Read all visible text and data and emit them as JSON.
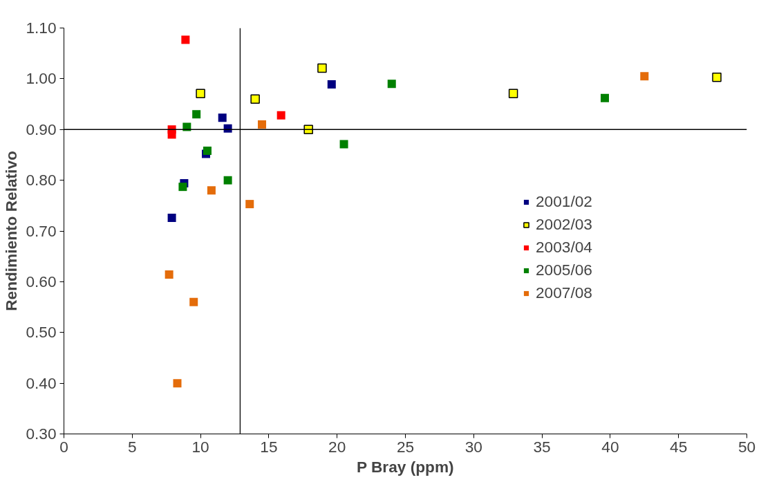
{
  "chart_data": {
    "type": "scatter",
    "xlabel": "P Bray (ppm)",
    "ylabel": "Rendimiento Relativo",
    "xlim": [
      0,
      50
    ],
    "xticks": [
      0,
      5,
      10,
      15,
      20,
      25,
      30,
      35,
      40,
      45,
      50
    ],
    "ylim": [
      0.3,
      1.1
    ],
    "yticks": [
      {
        "value": 0.3,
        "label": "0.30"
      },
      {
        "value": 0.4,
        "label": "0.40"
      },
      {
        "value": 0.5,
        "label": "0.50"
      },
      {
        "value": 0.6,
        "label": "0.60"
      },
      {
        "value": 0.7,
        "label": "0.70"
      },
      {
        "value": 0.8,
        "label": "0.80"
      },
      {
        "value": 0.9,
        "label": "0.90"
      },
      {
        "value": 1.0,
        "label": "1.00"
      },
      {
        "value": 1.1,
        "label": "1.10"
      }
    ],
    "grid": false,
    "legend": "right",
    "marker": "square",
    "series": [
      {
        "name": "2001/02",
        "color": "#000080",
        "x": [
          7.9,
          8.8,
          10.4,
          11.6,
          12.0,
          19.6
        ],
        "values": [
          0.726,
          0.794,
          0.852,
          0.923,
          0.902,
          0.989
        ]
      },
      {
        "name": "2002/03",
        "color": "#ffff00",
        "x": [
          10.0,
          14.0,
          18.9,
          17.9,
          32.9,
          47.8
        ],
        "values": [
          0.971,
          0.96,
          1.021,
          0.9,
          0.971,
          1.003
        ]
      },
      {
        "name": "2003/04",
        "color": "#ff0000",
        "x": [
          8.9,
          7.9,
          7.9,
          15.9
        ],
        "values": [
          1.077,
          0.9,
          0.89,
          0.928
        ]
      },
      {
        "name": "2005/06",
        "color": "#008000",
        "x": [
          9.0,
          9.7,
          10.5,
          8.7,
          12.0,
          20.5,
          24.0,
          39.6
        ],
        "values": [
          0.905,
          0.93,
          0.858,
          0.787,
          0.8,
          0.871,
          0.99,
          0.962
        ]
      },
      {
        "name": "2007/08",
        "color": "#e46c0a",
        "x": [
          14.5,
          10.8,
          13.6,
          7.7,
          9.5,
          8.3,
          42.5
        ],
        "values": [
          0.91,
          0.78,
          0.753,
          0.614,
          0.56,
          0.4,
          1.005
        ]
      }
    ],
    "ref_lines": [
      {
        "axis": "y",
        "value": 0.9,
        "color": "#000000"
      },
      {
        "axis": "x",
        "value": 12.9,
        "color": "#000000"
      }
    ]
  }
}
